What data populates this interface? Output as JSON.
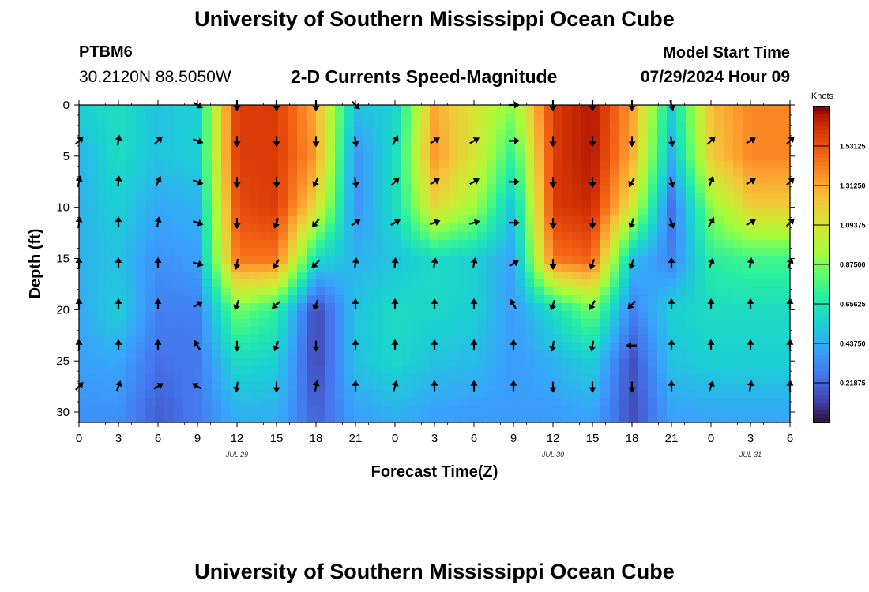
{
  "header": {
    "title": "University of Southern Mississippi Ocean Cube",
    "station_id": "PTBM6",
    "station_coords": "30.2120N  88.5050W",
    "plot_title": "2-D Currents Speed-Magnitude",
    "model_start_label": "Model Start Time",
    "model_start_value": "07/29/2024 Hour 09"
  },
  "footer": {
    "title": "University of Southern Mississippi Ocean Cube"
  },
  "chart_data": {
    "type": "heatmap",
    "title": "2-D Currents Speed-Magnitude",
    "xlabel": "Forecast Time(Z)",
    "ylabel": "Depth (ft)",
    "x_ticks": [
      "0",
      "3",
      "6",
      "9",
      "12",
      "15",
      "18",
      "21",
      "0",
      "3",
      "6",
      "9",
      "12",
      "15",
      "18",
      "21",
      "0",
      "3",
      "6"
    ],
    "date_labels": [
      {
        "label": "JUL 29",
        "tick_index": 4
      },
      {
        "label": "JUL 30",
        "tick_index": 12
      },
      {
        "label": "JUL 31",
        "tick_index": 17
      }
    ],
    "y_ticks": [
      0,
      5,
      10,
      15,
      20,
      25,
      30
    ],
    "ylim": [
      31,
      0
    ],
    "colorbar": {
      "unit": "Knots",
      "range": [
        0,
        1.75
      ],
      "ticks": [
        "0.21875",
        "0.43750",
        "0.65625",
        "0.87500",
        "1.09375",
        "1.31250",
        "1.53125"
      ]
    },
    "speed_knots": {
      "depths_ft": [
        0,
        5,
        10,
        15,
        20,
        25,
        30
      ],
      "forecast_hours": [
        0,
        3,
        6,
        9,
        12,
        15,
        18,
        21,
        24,
        27,
        30,
        33,
        36,
        39,
        42,
        45,
        48,
        51,
        54
      ],
      "values": [
        [
          0.55,
          0.62,
          0.5,
          0.55,
          1.6,
          1.6,
          1.3,
          0.5,
          0.55,
          1.3,
          1.1,
          0.9,
          1.6,
          1.7,
          1.35,
          0.55,
          1.25,
          1.4,
          1.4
        ],
        [
          0.45,
          0.6,
          0.5,
          0.55,
          1.6,
          1.6,
          1.35,
          0.35,
          0.6,
          1.35,
          1.1,
          0.7,
          1.6,
          1.7,
          1.3,
          0.45,
          1.2,
          1.4,
          1.4
        ],
        [
          0.45,
          0.55,
          0.42,
          0.45,
          1.55,
          1.6,
          1.15,
          0.35,
          0.6,
          1.15,
          0.95,
          0.5,
          1.6,
          1.65,
          1.1,
          0.25,
          0.9,
          1.2,
          1.2
        ],
        [
          0.45,
          0.5,
          0.35,
          0.4,
          1.45,
          1.45,
          0.6,
          0.45,
          0.5,
          0.6,
          0.55,
          0.4,
          1.45,
          1.5,
          0.5,
          0.3,
          0.7,
          0.75,
          0.75
        ],
        [
          0.42,
          0.55,
          0.3,
          0.3,
          0.85,
          0.7,
          0.12,
          0.5,
          0.6,
          0.58,
          0.55,
          0.38,
          0.6,
          0.85,
          0.3,
          0.55,
          0.6,
          0.6,
          0.6
        ],
        [
          0.4,
          0.42,
          0.25,
          0.28,
          0.6,
          0.55,
          0.12,
          0.5,
          0.58,
          0.5,
          0.48,
          0.38,
          0.45,
          0.55,
          0.15,
          0.5,
          0.55,
          0.55,
          0.55
        ],
        [
          0.35,
          0.35,
          0.2,
          0.28,
          0.45,
          0.45,
          0.2,
          0.4,
          0.45,
          0.4,
          0.38,
          0.38,
          0.38,
          0.42,
          0.15,
          0.4,
          0.42,
          0.42,
          0.42
        ]
      ]
    },
    "direction_deg": {
      "depths_ft": [
        0,
        3.5,
        7.5,
        11.5,
        15.5,
        19.5,
        23.5,
        27.5
      ],
      "forecast_hours": [
        0,
        3,
        6,
        9,
        12,
        15,
        18,
        21,
        24,
        27,
        30,
        33,
        36,
        39,
        42,
        45,
        48,
        51,
        54
      ],
      "values": [
        [
          null,
          null,
          null,
          120,
          180,
          180,
          180,
          135,
          null,
          null,
          null,
          90,
          180,
          180,
          180,
          165,
          null,
          null,
          null
        ],
        [
          45,
          10,
          45,
          110,
          180,
          180,
          180,
          170,
          30,
          60,
          60,
          90,
          180,
          180,
          180,
          170,
          45,
          60,
          45
        ],
        [
          10,
          5,
          25,
          110,
          180,
          180,
          205,
          170,
          45,
          60,
          60,
          90,
          180,
          180,
          210,
          165,
          20,
          60,
          45
        ],
        [
          5,
          0,
          10,
          110,
          180,
          200,
          220,
          55,
          60,
          70,
          75,
          90,
          180,
          180,
          200,
          160,
          30,
          60,
          45
        ],
        [
          0,
          0,
          0,
          105,
          190,
          210,
          225,
          10,
          5,
          10,
          10,
          60,
          180,
          200,
          200,
          0,
          20,
          10,
          20
        ],
        [
          0,
          0,
          0,
          60,
          200,
          230,
          200,
          0,
          0,
          0,
          0,
          330,
          200,
          210,
          225,
          0,
          0,
          0,
          0
        ],
        [
          0,
          0,
          0,
          330,
          180,
          200,
          180,
          0,
          0,
          0,
          0,
          0,
          190,
          190,
          270,
          0,
          0,
          0,
          0
        ],
        [
          45,
          20,
          60,
          300,
          190,
          180,
          10,
          0,
          15,
          0,
          0,
          0,
          180,
          180,
          180,
          0,
          20,
          10,
          0
        ]
      ]
    }
  }
}
